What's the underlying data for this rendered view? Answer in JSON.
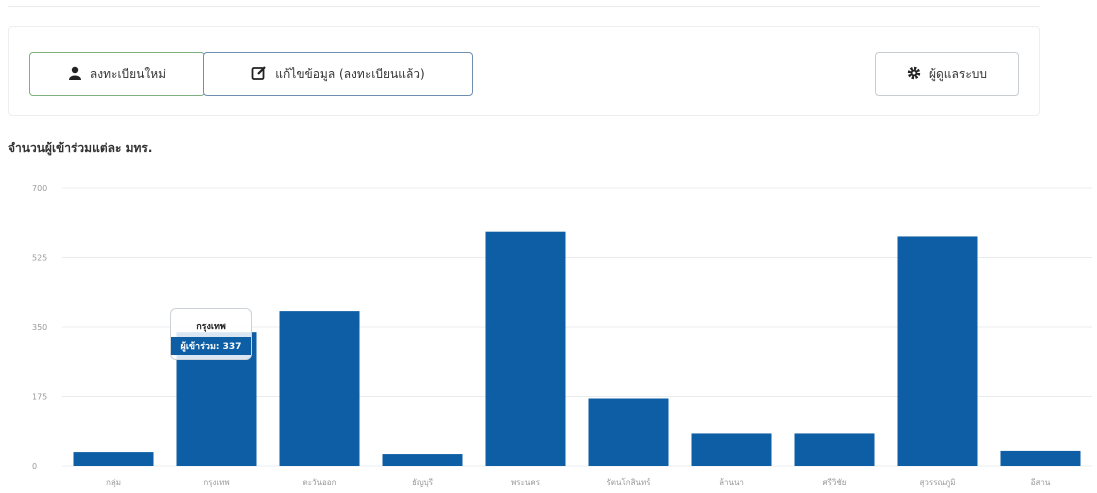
{
  "toolbar": {
    "register_label": "ลงทะเบียนใหม่",
    "edit_label": "แก้ไขข้อมูล (ลงทะเบียนแล้ว)",
    "admin_label": "ผู้ดูแลระบบ"
  },
  "chart_data": {
    "type": "bar",
    "title": "จำนวนผู้เข้าร่วมแต่ละ มทร.",
    "categories": [
      "กลุ่ม",
      "กรุงเทพ",
      "ตะวันออก",
      "ธัญบุรี",
      "พระนคร",
      "รัตนโกสินทร์",
      "ล้านนา",
      "ศรีวิชัย",
      "สุวรรณภูมิ",
      "อีสาน"
    ],
    "values": [
      35,
      337,
      390,
      30,
      590,
      170,
      82,
      82,
      578,
      38
    ],
    "y_ticks": [
      "0",
      "175",
      "350",
      "525",
      "700"
    ],
    "ylim": [
      0,
      700
    ],
    "color": "#0d5ea5",
    "grid": true,
    "tooltip": {
      "category": "กรุงเทพ",
      "label": "ผู้เข้าร่วม: 337"
    }
  }
}
